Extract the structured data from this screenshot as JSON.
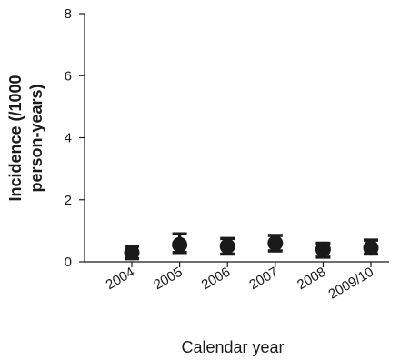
{
  "chart_data": {
    "type": "scatter",
    "categories": [
      "2004",
      "2005",
      "2006",
      "2007",
      "2008",
      "2009/10"
    ],
    "values": [
      0.3,
      0.55,
      0.5,
      0.6,
      0.4,
      0.45
    ],
    "error_lower": [
      0.1,
      0.3,
      0.25,
      0.35,
      0.15,
      0.25
    ],
    "error_upper": [
      0.5,
      0.9,
      0.75,
      0.85,
      0.6,
      0.7
    ],
    "xlabel": "Calendar year",
    "ylabel_lines": [
      "Incidence (/1000",
      "person-years)"
    ],
    "ylim": [
      0,
      8
    ],
    "yticks": [
      0,
      2,
      4,
      6,
      8
    ],
    "grid": false,
    "marker_color": "#1a1a1a"
  }
}
